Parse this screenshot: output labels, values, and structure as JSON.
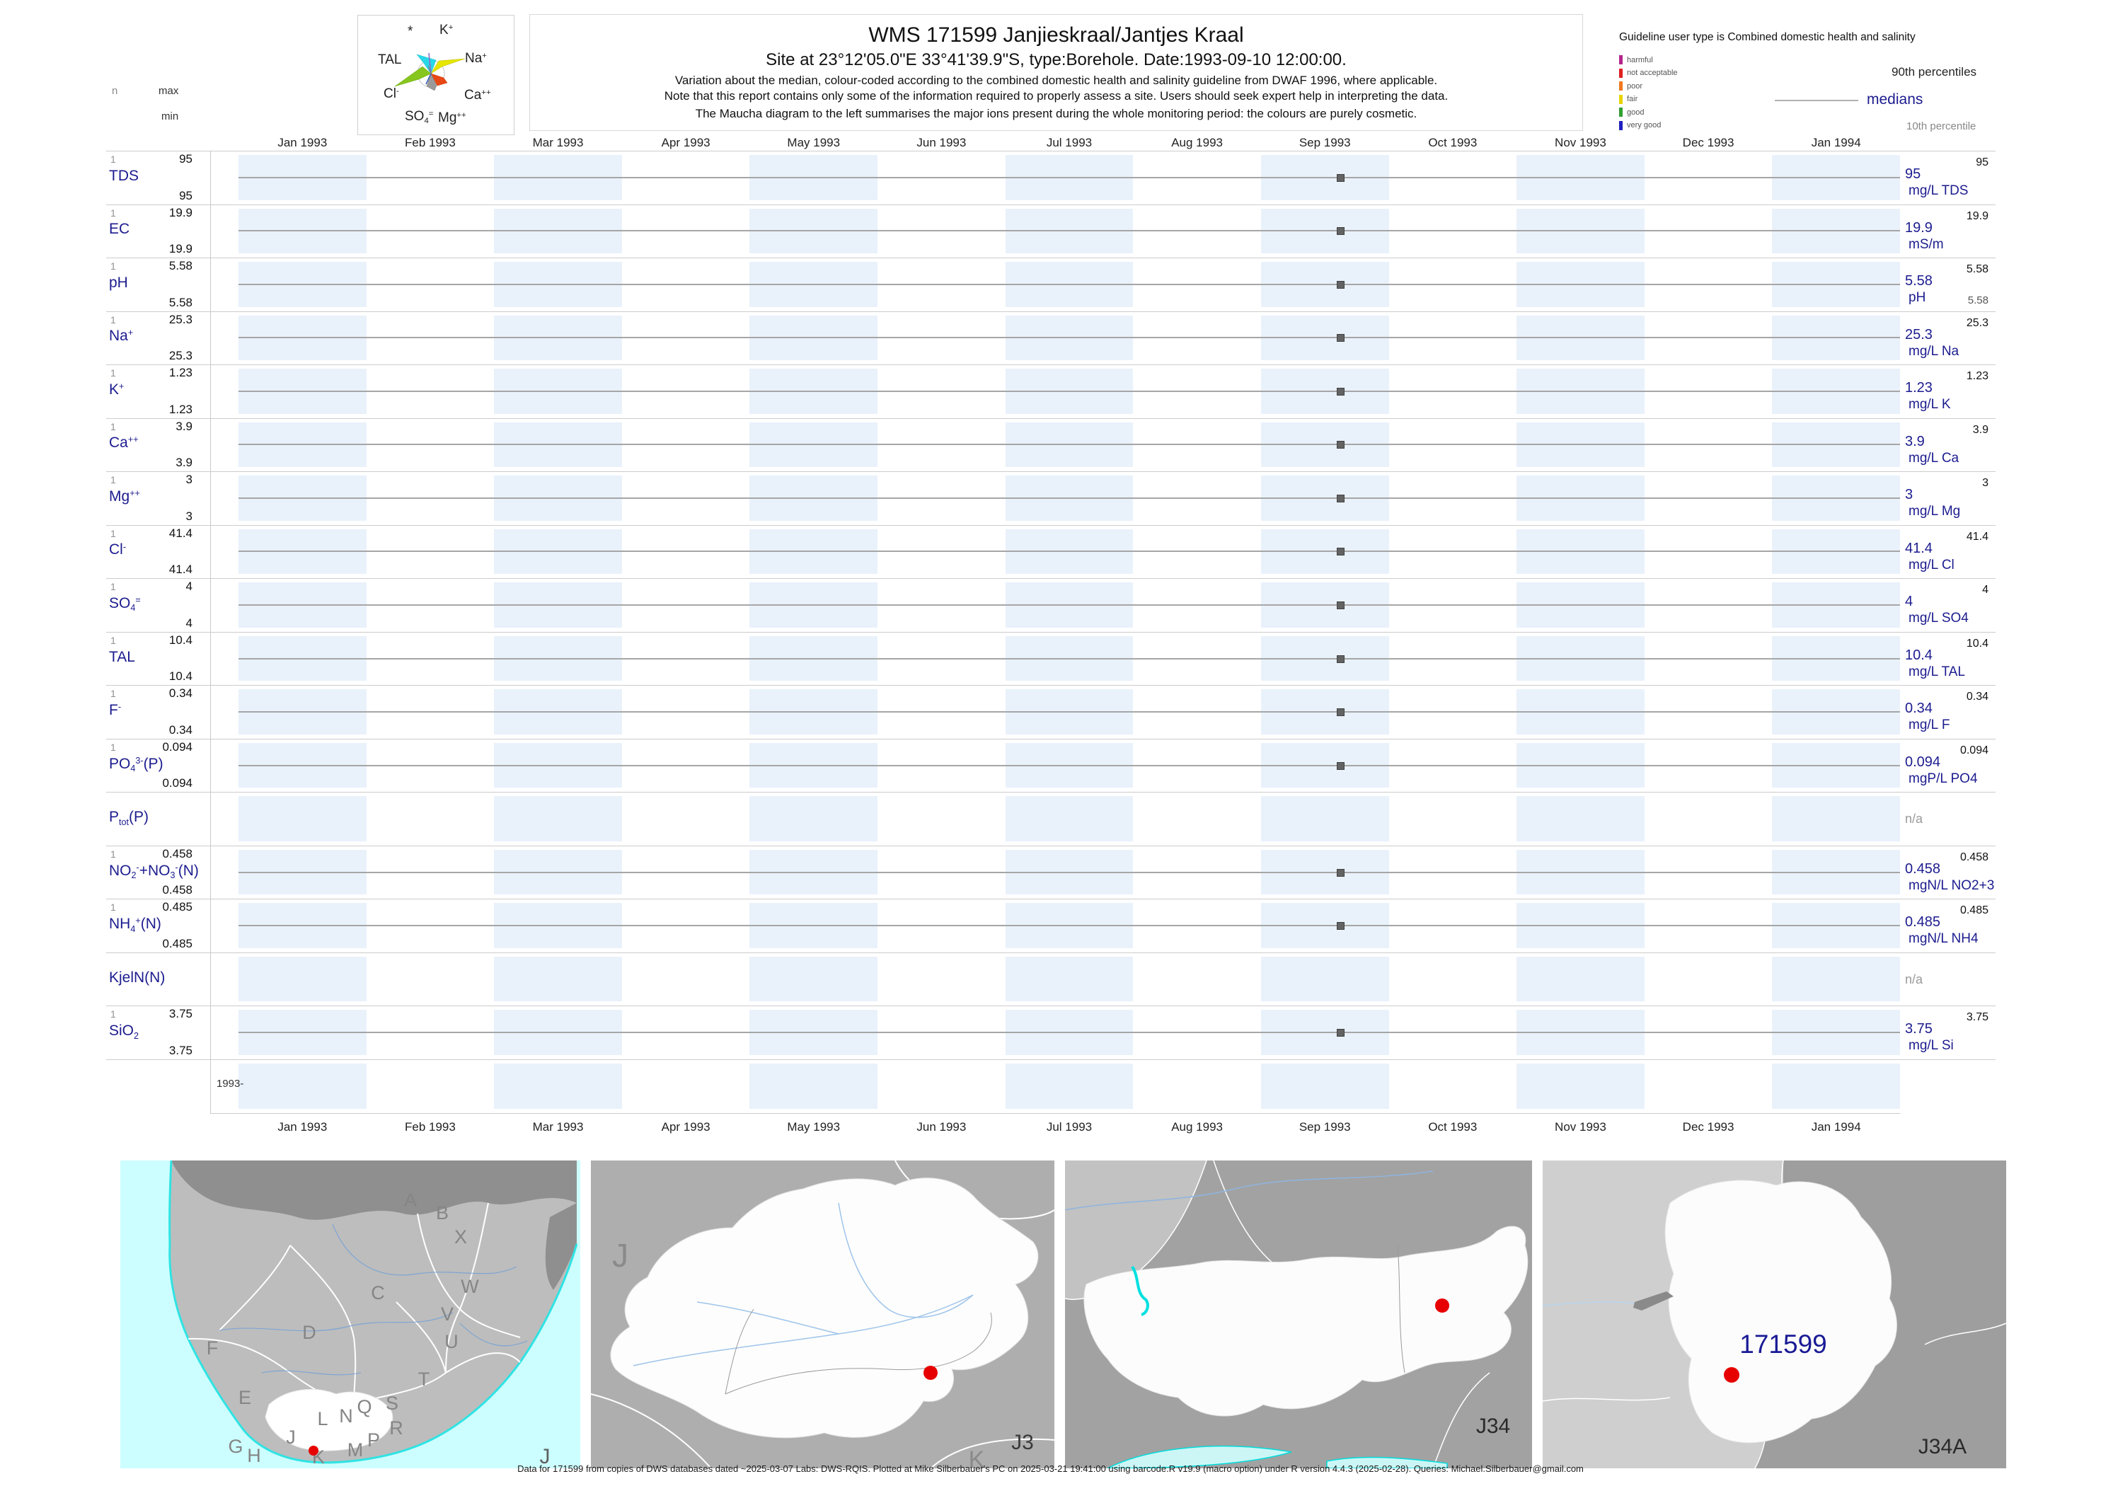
{
  "header": {
    "stats_col": {
      "n": "n",
      "max": "max",
      "min": "min"
    },
    "title": "WMS 171599  Janjieskraal/Jantjes Kraal",
    "subtitle": "Site at 23°12'05.0\"E 33°41'39.9\"S, type:Borehole. Date:1993-09-10 12:00:00.",
    "note1": "Variation about the median,  colour-coded according to the combined domestic health and salinity guideline from DWAF 1996, where applicable.",
    "note2": "Note that this report contains only some of the information required to properly assess a site. Users should seek expert help in interpreting the data.",
    "note3": "The Maucha diagram to the left summarises the major ions present during the whole monitoring period: the colours are purely cosmetic."
  },
  "maucha": {
    "labels": [
      {
        "parts": [
          [
            "*",
            ""
          ]
        ]
      },
      {
        "parts": [
          [
            "K",
            ""
          ],
          [
            "+",
            "sup"
          ]
        ]
      },
      {
        "parts": [
          [
            "TAL",
            ""
          ]
        ]
      },
      {
        "parts": [
          [
            "Na",
            ""
          ],
          [
            "+",
            "sup"
          ]
        ]
      },
      {
        "parts": [
          [
            "Cl",
            ""
          ],
          [
            "-",
            "sup"
          ]
        ]
      },
      {
        "parts": [
          [
            "Ca",
            ""
          ],
          [
            "++",
            "sup"
          ]
        ]
      },
      {
        "parts": [
          [
            "SO",
            ""
          ],
          [
            "4",
            "sub"
          ],
          [
            "=",
            "sup"
          ]
        ]
      },
      {
        "parts": [
          [
            "Mg",
            ""
          ],
          [
            "++",
            "sup"
          ]
        ]
      }
    ]
  },
  "guideline_legend": {
    "title": "Guideline user type is Combined domestic health and salinity",
    "classes": [
      {
        "label": "harmful",
        "color": "#b4258c"
      },
      {
        "label": "not acceptable",
        "color": "#e02020"
      },
      {
        "label": "poor",
        "color": "#f07820"
      },
      {
        "label": "fair",
        "color": "#e8d400"
      },
      {
        "label": "good",
        "color": "#30a030"
      },
      {
        "label": "very good",
        "color": "#2020c0"
      }
    ],
    "p90_label": "90th percentiles",
    "median_label": "medians",
    "p10_label": "10th percentile"
  },
  "axis": {
    "months": [
      "Jan 1993",
      "Feb 1993",
      "Mar 1993",
      "Apr 1993",
      "May 1993",
      "Jun 1993",
      "Jul 1993",
      "Aug 1993",
      "Sep 1993",
      "Oct 1993",
      "Nov 1993",
      "Dec 1993",
      "Jan 1994"
    ]
  },
  "rows": [
    {
      "id": "tds",
      "name_parts": [
        [
          "TDS",
          ""
        ]
      ],
      "n": "1",
      "max": "95",
      "min": "95",
      "p90": "95",
      "median": "95",
      "unit": "mg/L TDS",
      "has_data": true
    },
    {
      "id": "ec",
      "name_parts": [
        [
          "EC",
          ""
        ]
      ],
      "n": "1",
      "max": "19.9",
      "min": "19.9",
      "p90": "19.9",
      "median": "19.9",
      "unit": "mS/m",
      "has_data": true
    },
    {
      "id": "ph",
      "name_parts": [
        [
          "pH",
          ""
        ]
      ],
      "n": "1",
      "max": "5.58",
      "min": "5.58",
      "p90": "5.58",
      "median": "5.58",
      "p10": "5.58",
      "unit": "pH",
      "has_data": true
    },
    {
      "id": "na",
      "name_parts": [
        [
          "Na",
          ""
        ],
        [
          "+",
          "sup"
        ]
      ],
      "n": "1",
      "max": "25.3",
      "min": "25.3",
      "p90": "25.3",
      "median": "25.3",
      "unit": "mg/L Na",
      "has_data": true
    },
    {
      "id": "k",
      "name_parts": [
        [
          "K",
          ""
        ],
        [
          "+",
          "sup"
        ]
      ],
      "n": "1",
      "max": "1.23",
      "min": "1.23",
      "p90": "1.23",
      "median": "1.23",
      "unit": "mg/L K",
      "has_data": true
    },
    {
      "id": "ca",
      "name_parts": [
        [
          "Ca",
          ""
        ],
        [
          "++",
          "sup"
        ]
      ],
      "n": "1",
      "max": "3.9",
      "min": "3.9",
      "p90": "3.9",
      "median": "3.9",
      "unit": "mg/L Ca",
      "has_data": true
    },
    {
      "id": "mg",
      "name_parts": [
        [
          "Mg",
          ""
        ],
        [
          "++",
          "sup"
        ]
      ],
      "n": "1",
      "max": "3",
      "min": "3",
      "p90": "3",
      "median": "3",
      "unit": "mg/L Mg",
      "has_data": true
    },
    {
      "id": "cl",
      "name_parts": [
        [
          "Cl",
          ""
        ],
        [
          "-",
          "sup"
        ]
      ],
      "n": "1",
      "max": "41.4",
      "min": "41.4",
      "p90": "41.4",
      "median": "41.4",
      "unit": "mg/L Cl",
      "has_data": true
    },
    {
      "id": "so4",
      "name_parts": [
        [
          "SO",
          ""
        ],
        [
          "4",
          "sub"
        ],
        [
          "=",
          "sup"
        ]
      ],
      "n": "1",
      "max": "4",
      "min": "4",
      "p90": "4",
      "median": "4",
      "unit": "mg/L SO4",
      "has_data": true
    },
    {
      "id": "tal",
      "name_parts": [
        [
          "TAL",
          ""
        ]
      ],
      "n": "1",
      "max": "10.4",
      "min": "10.4",
      "p90": "10.4",
      "median": "10.4",
      "unit": "mg/L TAL",
      "has_data": true
    },
    {
      "id": "f",
      "name_parts": [
        [
          "F",
          ""
        ],
        [
          "-",
          "sup"
        ]
      ],
      "n": "1",
      "max": "0.34",
      "min": "0.34",
      "p90": "0.34",
      "median": "0.34",
      "unit": "mg/L F",
      "has_data": true
    },
    {
      "id": "po4",
      "name_parts": [
        [
          "PO",
          ""
        ],
        [
          "4",
          "sub"
        ],
        [
          "3-",
          "sup"
        ],
        [
          "(P)",
          ""
        ]
      ],
      "n": "1",
      "max": "0.094",
      "min": "0.094",
      "p90": "0.094",
      "median": "0.094",
      "unit": "mgP/L PO4",
      "has_data": true
    },
    {
      "id": "ptot",
      "name_parts": [
        [
          "P",
          ""
        ],
        [
          "tot",
          "sub"
        ],
        [
          "(P)",
          ""
        ]
      ],
      "na": "n/a",
      "has_data": false
    },
    {
      "id": "no2no3",
      "name_parts": [
        [
          "NO",
          ""
        ],
        [
          "2",
          "sub"
        ],
        [
          "-",
          "sup"
        ],
        [
          "+NO",
          ""
        ],
        [
          "3",
          "sub"
        ],
        [
          "-",
          "sup"
        ],
        [
          "(N)",
          ""
        ]
      ],
      "n": "1",
      "max": "0.458",
      "min": "0.458",
      "p90": "0.458",
      "median": "0.458",
      "unit": "mgN/L NO2+3",
      "has_data": true
    },
    {
      "id": "nh4",
      "name_parts": [
        [
          "NH",
          ""
        ],
        [
          "4",
          "sub"
        ],
        [
          "+",
          "sup"
        ],
        [
          "(N)",
          ""
        ]
      ],
      "n": "1",
      "max": "0.485",
      "min": "0.485",
      "p90": "0.485",
      "median": "0.485",
      "unit": "mgN/L NH4",
      "has_data": true
    },
    {
      "id": "kjeln",
      "name_parts": [
        [
          "KjelN(N)",
          ""
        ]
      ],
      "na": "n/a",
      "has_data": false
    },
    {
      "id": "sio2",
      "name_parts": [
        [
          "SiO",
          ""
        ],
        [
          "2",
          "sub"
        ]
      ],
      "n": "1",
      "max": "3.75",
      "min": "3.75",
      "p90": "3.75",
      "median": "3.75",
      "unit": "mg/L Si",
      "has_data": true
    }
  ],
  "date_row_label": "1993-",
  "maps": {
    "regions_map": {
      "region_letters": [
        "A",
        "B",
        "X",
        "C",
        "W",
        "V",
        "U",
        "D",
        "F",
        "T",
        "E",
        "Q",
        "S",
        "R",
        "L",
        "N",
        "M",
        "P",
        "G",
        "H",
        "J",
        "K"
      ],
      "corner_label": "J"
    },
    "primary_map": {
      "big_label": "J",
      "corner_label": "J3",
      "edge_letter": "K"
    },
    "secondary_map": {
      "corner_label": "J34"
    },
    "quaternary_map": {
      "corner_label": "J34A",
      "site_label": "171599"
    }
  },
  "footer": "Data for 171599 from copies of DWS databases dated ~2025-03-07 Labs: DWS-RQIS. Plotted at Mike Silberbauer's PC on 2025-03-21 19:41:00 using barcode.R v19.9 (macro option) under R version 4.4.3 (2025-02-28). Queries: Michael.Silberbauer@gmail.com",
  "chart_data": {
    "type": "scatter",
    "title": "WMS 171599 Janjieskraal/Jantjes Kraal",
    "site": "23°12'05.0\"E 33°41'39.9\"S",
    "site_type": "Borehole",
    "sample_date": "1993-09-10 12:00:00",
    "n_samples": 1,
    "x_axis": {
      "range": [
        "Jan 1993",
        "Jan 1994"
      ],
      "ticks": [
        "Jan 1993",
        "Feb 1993",
        "Mar 1993",
        "Apr 1993",
        "May 1993",
        "Jun 1993",
        "Jul 1993",
        "Aug 1993",
        "Sep 1993",
        "Oct 1993",
        "Nov 1993",
        "Dec 1993",
        "Jan 1994"
      ]
    },
    "legend": {
      "p90": "90th percentiles",
      "median": "medians",
      "p10": "10th percentile"
    },
    "series": [
      {
        "name": "TDS",
        "unit": "mg/L TDS",
        "n": 1,
        "x": [
          "1993-09-10"
        ],
        "y": [
          95
        ],
        "min": 95,
        "max": 95,
        "median": 95,
        "p90": 95,
        "p10": 95
      },
      {
        "name": "EC",
        "unit": "mS/m",
        "n": 1,
        "x": [
          "1993-09-10"
        ],
        "y": [
          19.9
        ],
        "min": 19.9,
        "max": 19.9,
        "median": 19.9,
        "p90": 19.9,
        "p10": 19.9
      },
      {
        "name": "pH",
        "unit": "pH",
        "n": 1,
        "x": [
          "1993-09-10"
        ],
        "y": [
          5.58
        ],
        "min": 5.58,
        "max": 5.58,
        "median": 5.58,
        "p90": 5.58,
        "p10": 5.58
      },
      {
        "name": "Na",
        "unit": "mg/L Na",
        "n": 1,
        "x": [
          "1993-09-10"
        ],
        "y": [
          25.3
        ],
        "min": 25.3,
        "max": 25.3,
        "median": 25.3,
        "p90": 25.3,
        "p10": 25.3
      },
      {
        "name": "K",
        "unit": "mg/L K",
        "n": 1,
        "x": [
          "1993-09-10"
        ],
        "y": [
          1.23
        ],
        "min": 1.23,
        "max": 1.23,
        "median": 1.23,
        "p90": 1.23,
        "p10": 1.23
      },
      {
        "name": "Ca",
        "unit": "mg/L Ca",
        "n": 1,
        "x": [
          "1993-09-10"
        ],
        "y": [
          3.9
        ],
        "min": 3.9,
        "max": 3.9,
        "median": 3.9,
        "p90": 3.9,
        "p10": 3.9
      },
      {
        "name": "Mg",
        "unit": "mg/L Mg",
        "n": 1,
        "x": [
          "1993-09-10"
        ],
        "y": [
          3
        ],
        "min": 3,
        "max": 3,
        "median": 3,
        "p90": 3,
        "p10": 3
      },
      {
        "name": "Cl",
        "unit": "mg/L Cl",
        "n": 1,
        "x": [
          "1993-09-10"
        ],
        "y": [
          41.4
        ],
        "min": 41.4,
        "max": 41.4,
        "median": 41.4,
        "p90": 41.4,
        "p10": 41.4
      },
      {
        "name": "SO4",
        "unit": "mg/L SO4",
        "n": 1,
        "x": [
          "1993-09-10"
        ],
        "y": [
          4
        ],
        "min": 4,
        "max": 4,
        "median": 4,
        "p90": 4,
        "p10": 4
      },
      {
        "name": "TAL",
        "unit": "mg/L TAL",
        "n": 1,
        "x": [
          "1993-09-10"
        ],
        "y": [
          10.4
        ],
        "min": 10.4,
        "max": 10.4,
        "median": 10.4,
        "p90": 10.4,
        "p10": 10.4
      },
      {
        "name": "F",
        "unit": "mg/L F",
        "n": 1,
        "x": [
          "1993-09-10"
        ],
        "y": [
          0.34
        ],
        "min": 0.34,
        "max": 0.34,
        "median": 0.34,
        "p90": 0.34,
        "p10": 0.34
      },
      {
        "name": "PO4(P)",
        "unit": "mgP/L PO4",
        "n": 1,
        "x": [
          "1993-09-10"
        ],
        "y": [
          0.094
        ],
        "min": 0.094,
        "max": 0.094,
        "median": 0.094,
        "p90": 0.094,
        "p10": 0.094
      },
      {
        "name": "Ptot(P)",
        "unit": null,
        "n": 0,
        "x": [],
        "y": []
      },
      {
        "name": "NO2+NO3(N)",
        "unit": "mgN/L NO2+3",
        "n": 1,
        "x": [
          "1993-09-10"
        ],
        "y": [
          0.458
        ],
        "min": 0.458,
        "max": 0.458,
        "median": 0.458,
        "p90": 0.458,
        "p10": 0.458
      },
      {
        "name": "NH4(N)",
        "unit": "mgN/L NH4",
        "n": 1,
        "x": [
          "1993-09-10"
        ],
        "y": [
          0.485
        ],
        "min": 0.485,
        "max": 0.485,
        "median": 0.485,
        "p90": 0.485,
        "p10": 0.485
      },
      {
        "name": "KjelN(N)",
        "unit": null,
        "n": 0,
        "x": [],
        "y": []
      },
      {
        "name": "SiO2",
        "unit": "mg/L Si",
        "n": 1,
        "x": [
          "1993-09-10"
        ],
        "y": [
          3.75
        ],
        "min": 3.75,
        "max": 3.75,
        "median": 3.75,
        "p90": 3.75,
        "p10": 3.75
      }
    ]
  }
}
